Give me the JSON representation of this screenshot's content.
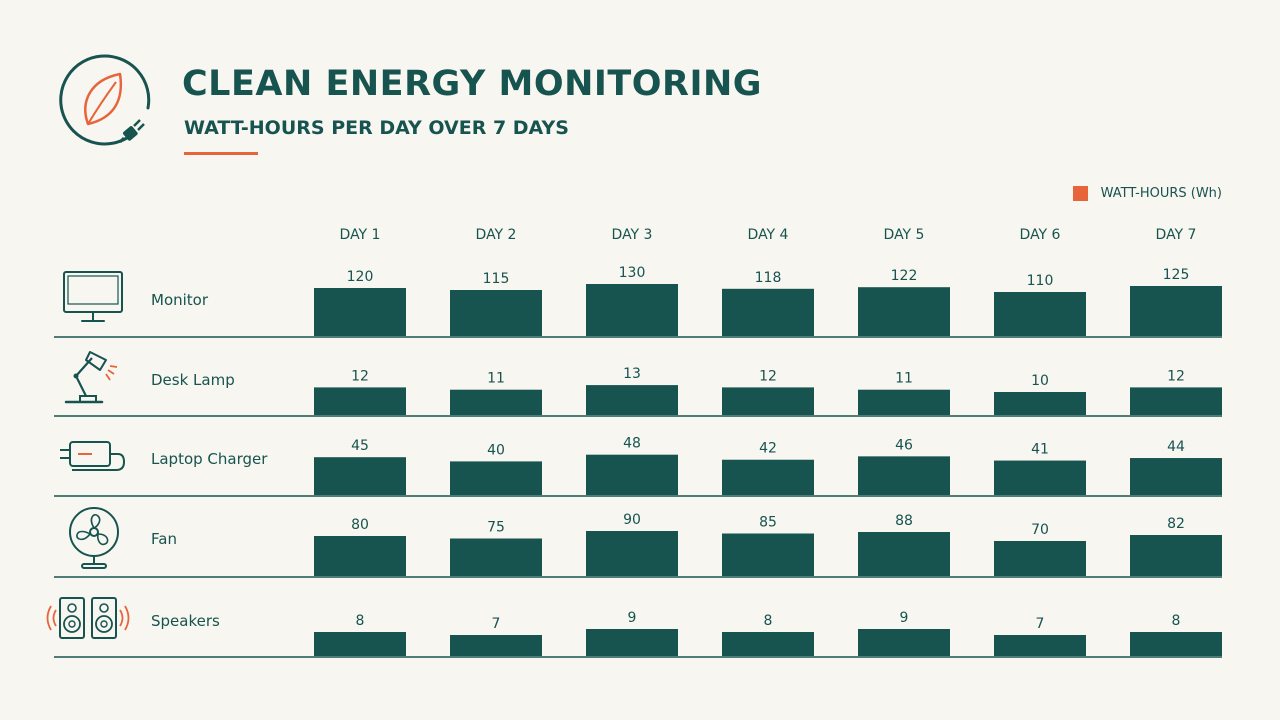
{
  "header": {
    "title": "CLEAN ENERGY MONITORING",
    "subtitle": "WATT-HOURS PER DAY OVER 7 DAYS"
  },
  "legend": {
    "label": "WATT-HOURS (Wh)"
  },
  "colors": {
    "accent": "#e8643a",
    "bar": "#17534f",
    "text": "#17534f",
    "background": "#f8f6f1"
  },
  "chart_data": {
    "type": "bar",
    "categories": [
      "DAY 1",
      "DAY 2",
      "DAY 3",
      "DAY 4",
      "DAY 5",
      "DAY 6",
      "DAY 7"
    ],
    "series": [
      {
        "name": "Monitor",
        "icon": "monitor-icon",
        "values": [
          120,
          115,
          130,
          118,
          122,
          110,
          125
        ]
      },
      {
        "name": "Desk Lamp",
        "icon": "desk-lamp-icon",
        "values": [
          12,
          11,
          13,
          12,
          11,
          10,
          12
        ]
      },
      {
        "name": "Laptop Charger",
        "icon": "laptop-charger-icon",
        "values": [
          45,
          40,
          48,
          42,
          46,
          41,
          44
        ]
      },
      {
        "name": "Fan",
        "icon": "fan-icon",
        "values": [
          80,
          75,
          90,
          85,
          88,
          70,
          82
        ]
      },
      {
        "name": "Speakers",
        "icon": "speakers-icon",
        "values": [
          8,
          7,
          9,
          8,
          9,
          7,
          8
        ]
      }
    ],
    "legend": "top-right",
    "grid": false
  }
}
